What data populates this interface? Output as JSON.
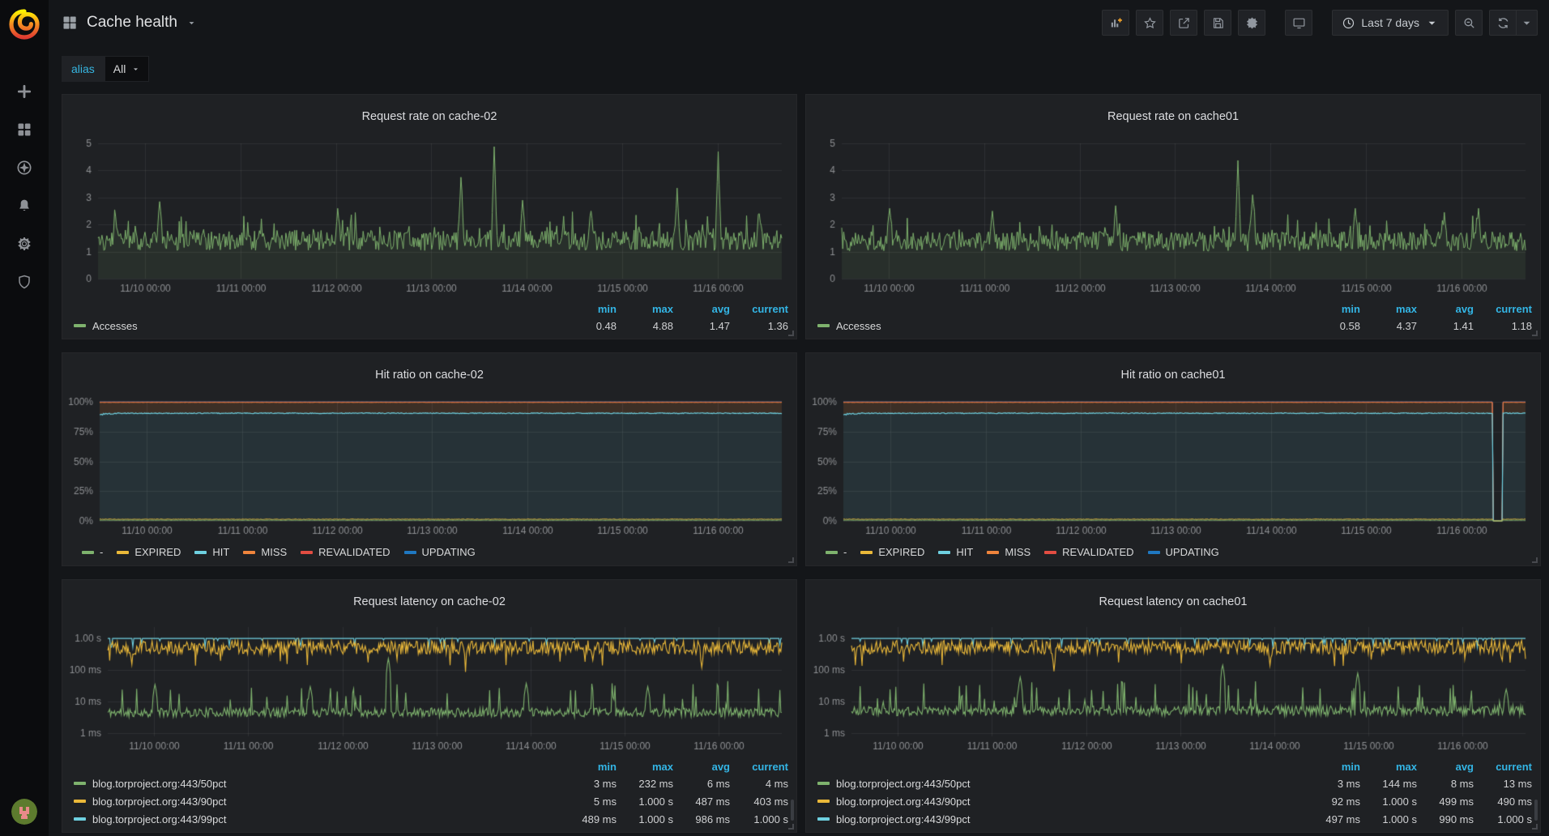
{
  "navbar": {
    "title": "Cache health",
    "time_range": "Last 7 days"
  },
  "variables": {
    "label": "alias",
    "value": "All"
  },
  "legend_headers": [
    "min",
    "max",
    "avg",
    "current"
  ],
  "colors": {
    "green": "#7EB26D",
    "yellow": "#EAB839",
    "cyan": "#6ED0E0",
    "orange": "#EF843C",
    "red": "#E24D42",
    "blue": "#1F78C1",
    "stat_header": "#33b5e5",
    "axis_text": "#8e9093"
  },
  "chart_data": [
    {
      "type": "line",
      "title": "Request rate on cache-02",
      "ylim": [
        0,
        5
      ],
      "yticks": [
        0,
        1,
        2,
        3,
        4,
        5
      ],
      "grid": true,
      "legend_position": "bottom",
      "xticks": {
        "fracs": [
          0.069,
          0.2085,
          0.348,
          0.4875,
          0.627,
          0.7665,
          0.906
        ],
        "labels": [
          "11/10 00:00",
          "11/11 00:00",
          "11/12 00:00",
          "11/13 00:00",
          "11/14 00:00",
          "11/15 00:00",
          "11/16 00:00"
        ]
      },
      "series": [
        {
          "name": "Accesses",
          "color": "#7EB26D",
          "fill_opacity": 0.1,
          "stats": {
            "min": "0.48",
            "max": "4.88",
            "avg": "1.47",
            "current": "1.36"
          },
          "gen": {
            "seed": 42,
            "base": 1.42,
            "noise": 0.38,
            "spike_chance": 0.1,
            "spike_extra": 0.85,
            "floor": 0.5,
            "peaks": [
              {
                "f": 0.025,
                "v": 2.3
              },
              {
                "f": 0.09,
                "v": 2.85
              },
              {
                "f": 0.35,
                "v": 2.6
              },
              {
                "f": 0.53,
                "v": 3.75
              },
              {
                "f": 0.578,
                "v": 4.88
              },
              {
                "f": 0.62,
                "v": 2.9
              },
              {
                "f": 0.72,
                "v": 2.5
              },
              {
                "f": 0.845,
                "v": 3.35
              },
              {
                "f": 0.906,
                "v": 4.7
              },
              {
                "f": 0.965,
                "v": 2.4
              }
            ]
          }
        }
      ]
    },
    {
      "type": "line",
      "title": "Request rate on cache01",
      "ylim": [
        0,
        5
      ],
      "yticks": [
        0,
        1,
        2,
        3,
        4,
        5
      ],
      "grid": true,
      "legend_position": "bottom",
      "xticks": {
        "fracs": [
          0.069,
          0.2085,
          0.348,
          0.4875,
          0.627,
          0.7665,
          0.906
        ],
        "labels": [
          "11/10 00:00",
          "11/11 00:00",
          "11/12 00:00",
          "11/13 00:00",
          "11/14 00:00",
          "11/15 00:00",
          "11/16 00:00"
        ]
      },
      "series": [
        {
          "name": "Accesses",
          "color": "#7EB26D",
          "fill_opacity": 0.1,
          "stats": {
            "min": "0.58",
            "max": "4.37",
            "avg": "1.41",
            "current": "1.18"
          },
          "gen": {
            "seed": 77,
            "base": 1.38,
            "noise": 0.36,
            "spike_chance": 0.09,
            "spike_extra": 0.8,
            "floor": 0.58,
            "peaks": [
              {
                "f": 0.07,
                "v": 2.6
              },
              {
                "f": 0.22,
                "v": 2.5
              },
              {
                "f": 0.4,
                "v": 2.7
              },
              {
                "f": 0.578,
                "v": 4.37
              },
              {
                "f": 0.6,
                "v": 3.1
              },
              {
                "f": 0.75,
                "v": 2.6
              },
              {
                "f": 0.88,
                "v": 2.45
              },
              {
                "f": 0.93,
                "v": 2.6
              }
            ]
          }
        }
      ]
    },
    {
      "type": "stacked_percent",
      "title": "Hit ratio on cache-02",
      "ylim": [
        0,
        100
      ],
      "yticks": [
        0,
        25,
        50,
        75,
        100
      ],
      "ytick_labels": [
        "0%",
        "25%",
        "50%",
        "75%",
        "100%"
      ],
      "grid": true,
      "start_dip": true,
      "gap": null,
      "xticks": {
        "fracs": [
          0.069,
          0.2085,
          0.348,
          0.4875,
          0.627,
          0.7665,
          0.906
        ],
        "labels": [
          "11/10 00:00",
          "11/11 00:00",
          "11/12 00:00",
          "11/13 00:00",
          "11/14 00:00",
          "11/15 00:00",
          "11/16 00:00"
        ]
      },
      "series": [
        {
          "name": "-",
          "color": "#7EB26D",
          "level": 0.55
        },
        {
          "name": "EXPIRED",
          "color": "#EAB839",
          "level": 1.35
        },
        {
          "name": "HIT",
          "color": "#6ED0E0",
          "level": 90.4
        },
        {
          "name": "MISS",
          "color": "#EF843C",
          "level": 99.5
        },
        {
          "name": "REVALIDATED",
          "color": "#E24D42",
          "level": 99.78
        },
        {
          "name": "UPDATING",
          "color": "#1F78C1",
          "level": 99.95
        }
      ]
    },
    {
      "type": "stacked_percent",
      "title": "Hit ratio on cache01",
      "ylim": [
        0,
        100
      ],
      "yticks": [
        0,
        25,
        50,
        75,
        100
      ],
      "ytick_labels": [
        "0%",
        "25%",
        "50%",
        "75%",
        "100%"
      ],
      "grid": true,
      "start_dip": true,
      "gap": {
        "from": 0.952,
        "to": 0.967
      },
      "xticks": {
        "fracs": [
          0.069,
          0.2085,
          0.348,
          0.4875,
          0.627,
          0.7665,
          0.906
        ],
        "labels": [
          "11/10 00:00",
          "11/11 00:00",
          "11/12 00:00",
          "11/13 00:00",
          "11/14 00:00",
          "11/15 00:00",
          "11/16 00:00"
        ]
      },
      "series": [
        {
          "name": "-",
          "color": "#7EB26D",
          "level": 0.55
        },
        {
          "name": "EXPIRED",
          "color": "#EAB839",
          "level": 1.35
        },
        {
          "name": "HIT",
          "color": "#6ED0E0",
          "level": 90.4
        },
        {
          "name": "MISS",
          "color": "#EF843C",
          "level": 99.5
        },
        {
          "name": "REVALIDATED",
          "color": "#E24D42",
          "level": 99.78
        },
        {
          "name": "UPDATING",
          "color": "#1F78C1",
          "level": 99.95
        }
      ]
    },
    {
      "type": "line_log",
      "title": "Request latency on cache-02",
      "yticks": [
        1,
        10,
        100,
        1000
      ],
      "ytick_labels": [
        "1 ms",
        "10 ms",
        "100 ms",
        "1.00 s"
      ],
      "grid": true,
      "xticks": {
        "fracs": [
          0.069,
          0.2085,
          0.348,
          0.4875,
          0.627,
          0.7665,
          0.906
        ],
        "labels": [
          "11/10 00:00",
          "11/11 00:00",
          "11/12 00:00",
          "11/13 00:00",
          "11/14 00:00",
          "11/15 00:00",
          "11/16 00:00"
        ]
      },
      "series": [
        {
          "name": "blog.torproject.org:443/50pct",
          "color": "#7EB26D",
          "mode": "low",
          "stats": {
            "min": "3 ms",
            "max": "232 ms",
            "avg": "6 ms",
            "current": "4 ms"
          },
          "gen": {
            "seed": 11,
            "base": 4.6,
            "jitter": 0.33,
            "spike_chance": 0.06,
            "spike_mult": 6,
            "peaks": [
              {
                "f": 0.415,
                "v": 232
              },
              {
                "f": 0.07,
                "v": 35
              },
              {
                "f": 0.3,
                "v": 30
              },
              {
                "f": 0.62,
                "v": 38
              },
              {
                "f": 0.8,
                "v": 30
              }
            ]
          }
        },
        {
          "name": "blog.torproject.org:443/90pct",
          "color": "#EAB839",
          "mode": "mid",
          "stats": {
            "min": "5 ms",
            "max": "1.000 s",
            "avg": "487 ms",
            "current": "403 ms"
          },
          "gen": {
            "seed": 12,
            "base": 520,
            "jitter": 0.5,
            "dip_chance": 0.025,
            "dip_base": 115,
            "peaks": [
              {
                "f": 0.53,
                "v": 88
              },
              {
                "f": 0.035,
                "v": 150
              },
              {
                "f": 0.88,
                "v": 120
              }
            ]
          }
        },
        {
          "name": "blog.torproject.org:443/99pct",
          "color": "#6ED0E0",
          "mode": "top",
          "stats": {
            "min": "489 ms",
            "max": "1.000 s",
            "avg": "986 ms",
            "current": "1.000 s"
          },
          "gen": {
            "seed": 13,
            "base": 1000,
            "dip_chance": 0.05,
            "dip_base": 500,
            "dip_span": 430,
            "peaks": []
          }
        }
      ]
    },
    {
      "type": "line_log",
      "title": "Request latency on cache01",
      "yticks": [
        1,
        10,
        100,
        1000
      ],
      "ytick_labels": [
        "1 ms",
        "10 ms",
        "100 ms",
        "1.00 s"
      ],
      "grid": true,
      "xticks": {
        "fracs": [
          0.069,
          0.2085,
          0.348,
          0.4875,
          0.627,
          0.7665,
          0.906
        ],
        "labels": [
          "11/10 00:00",
          "11/11 00:00",
          "11/12 00:00",
          "11/13 00:00",
          "11/14 00:00",
          "11/15 00:00",
          "11/16 00:00"
        ]
      },
      "series": [
        {
          "name": "blog.torproject.org:443/50pct",
          "color": "#7EB26D",
          "mode": "low",
          "stats": {
            "min": "3 ms",
            "max": "144 ms",
            "avg": "8 ms",
            "current": "13 ms"
          },
          "gen": {
            "seed": 21,
            "base": 5.2,
            "jitter": 0.36,
            "spike_chance": 0.09,
            "spike_mult": 6,
            "peaks": [
              {
                "f": 0.55,
                "v": 144
              },
              {
                "f": 0.25,
                "v": 60
              },
              {
                "f": 0.75,
                "v": 80
              },
              {
                "f": 0.97,
                "v": 25
              }
            ]
          }
        },
        {
          "name": "blog.torproject.org:443/90pct",
          "color": "#EAB839",
          "mode": "mid",
          "stats": {
            "min": "92 ms",
            "max": "1.000 s",
            "avg": "499 ms",
            "current": "490 ms"
          },
          "gen": {
            "seed": 22,
            "base": 530,
            "jitter": 0.5,
            "dip_chance": 0.02,
            "dip_base": 130,
            "peaks": [
              {
                "f": 0.3,
                "v": 92
              },
              {
                "f": 0.62,
                "v": 140
              }
            ]
          }
        },
        {
          "name": "blog.torproject.org:443/99pct",
          "color": "#6ED0E0",
          "mode": "top",
          "stats": {
            "min": "497 ms",
            "max": "1.000 s",
            "avg": "990 ms",
            "current": "1.000 s"
          },
          "gen": {
            "seed": 23,
            "base": 1000,
            "dip_chance": 0.05,
            "dip_base": 510,
            "dip_span": 420,
            "peaks": []
          }
        }
      ]
    }
  ]
}
